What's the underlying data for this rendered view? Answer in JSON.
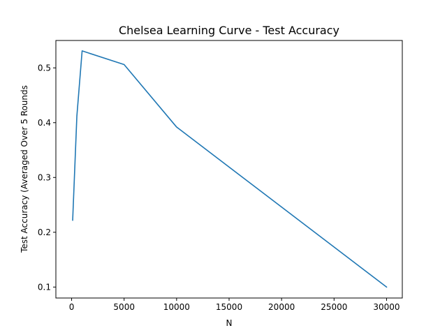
{
  "chart_data": {
    "type": "line",
    "title": "Chelsea Learning Curve - Test Accuracy",
    "xlabel": "N",
    "ylabel": "Test Accuracy (Averaged Over 5 Rounds",
    "xlim": [
      -1500,
      31500
    ],
    "ylim": [
      0.08,
      0.55
    ],
    "x_ticks": [
      0,
      5000,
      10000,
      15000,
      20000,
      25000,
      30000
    ],
    "x_tick_labels": [
      "0",
      "5000",
      "10000",
      "15000",
      "20000",
      "25000",
      "30000"
    ],
    "y_ticks": [
      0.1,
      0.2,
      0.3,
      0.4,
      0.5
    ],
    "y_tick_labels": [
      "0.1",
      "0.2",
      "0.3",
      "0.4",
      "0.5"
    ],
    "grid": false,
    "series": [
      {
        "color": "#1f77b4",
        "x": [
          100,
          500,
          1000,
          5000,
          10000,
          30000
        ],
        "y": [
          0.222,
          0.412,
          0.531,
          0.506,
          0.392,
          0.1
        ]
      }
    ]
  }
}
